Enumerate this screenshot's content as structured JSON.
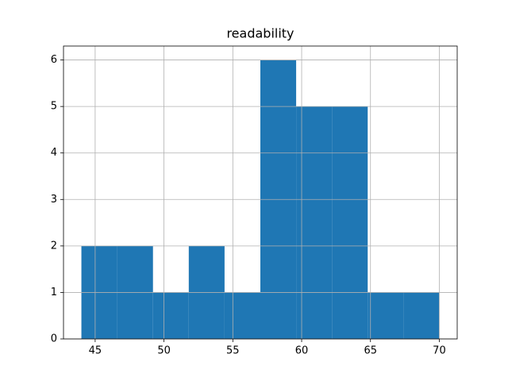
{
  "chart_data": {
    "type": "histogram",
    "title": "readability",
    "bins": [
      44,
      46.6,
      49.2,
      51.8,
      54.4,
      57,
      59.6,
      62.2,
      64.8,
      67.4,
      70
    ],
    "values": [
      2,
      2,
      1,
      2,
      1,
      6,
      5,
      5,
      1,
      1
    ],
    "color": "#1f77b4",
    "xlim": [
      42.7,
      71.3
    ],
    "xticks": [
      45,
      50,
      55,
      60,
      65,
      70
    ],
    "ylim": [
      0,
      6.3
    ],
    "yticks": [
      0,
      1,
      2,
      3,
      4,
      5,
      6
    ],
    "grid": true
  }
}
